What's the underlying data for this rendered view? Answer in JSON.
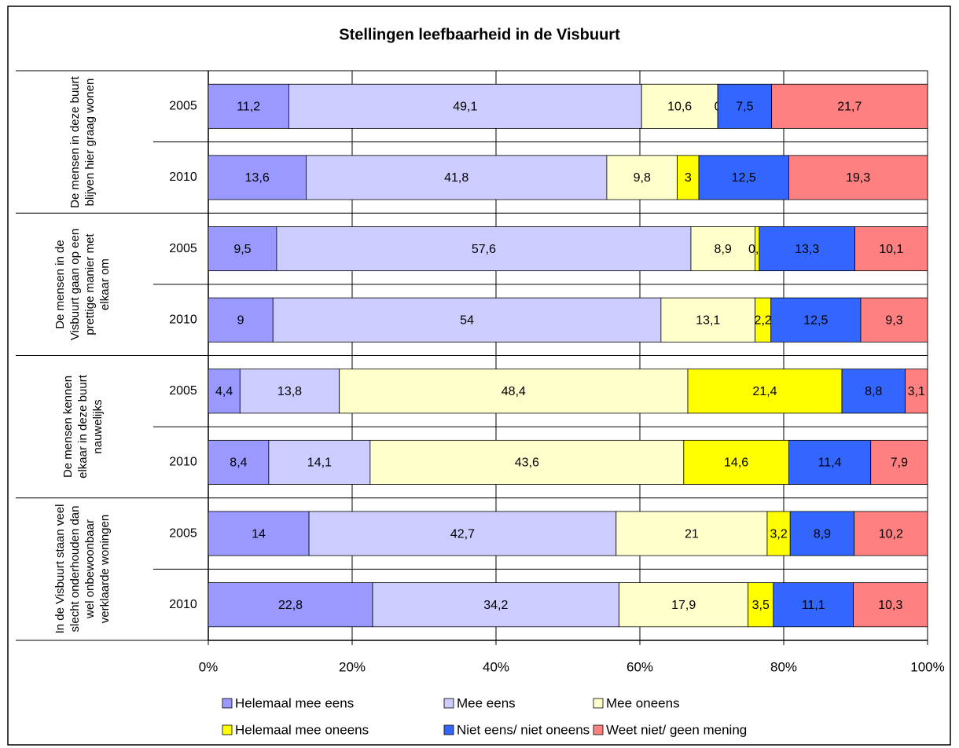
{
  "chart_data": {
    "type": "bar",
    "orientation": "horizontal",
    "stacked": "percent",
    "title": "Stellingen leefbaarheid in de Visbuurt",
    "groups": [
      "De mensen in deze buurt blijven hier graag wonen",
      "De mensen in de Visbuurt gaan op een prettige manier met elkaar om",
      "De mensen kennen elkaar in deze buurt nauwelijks",
      "In de Visbuurt staan veel slecht onderhouden dan wel onbewoonbaar verklaarde woningen"
    ],
    "categories": [
      "2005",
      "2010",
      "2005",
      "2010",
      "2005",
      "2010",
      "2005",
      "2010"
    ],
    "series": [
      {
        "name": "Helemaal mee eens",
        "color": "#9999ff",
        "values": [
          11.2,
          13.6,
          9.5,
          9,
          4.4,
          8.4,
          14,
          22.8
        ],
        "value_labels": [
          "11,2",
          "13,6",
          "9,5",
          "9",
          "4,4",
          "8,4",
          "14",
          "22,8"
        ]
      },
      {
        "name": "Mee eens",
        "color": "#ccccff",
        "values": [
          49.1,
          41.8,
          57.6,
          54,
          13.8,
          14.1,
          42.7,
          34.2
        ],
        "value_labels": [
          "49,1",
          "41,8",
          "57,6",
          "54",
          "13,8",
          "14,1",
          "42,7",
          "34,2"
        ]
      },
      {
        "name": "Mee oneens",
        "color": "#ffffcc",
        "values": [
          10.6,
          9.8,
          8.9,
          13.1,
          48.4,
          43.6,
          21,
          17.9
        ],
        "value_labels": [
          "10,6",
          "9,8",
          "8,9",
          "13,1",
          "48,4",
          "43,6",
          "21",
          "17,9"
        ]
      },
      {
        "name": "Helemaal mee oneens",
        "color": "#ffff00",
        "values": [
          0,
          3,
          0.6,
          2.2,
          21.4,
          14.6,
          3.2,
          3.5
        ],
        "value_labels": [
          "0",
          "3",
          "0,6",
          "2,2",
          "21,4",
          "14,6",
          "3,2",
          "3,5"
        ]
      },
      {
        "name": "Niet eens/ niet oneens",
        "color": "#3366ff",
        "values": [
          7.5,
          12.5,
          13.3,
          12.5,
          8.8,
          11.4,
          8.9,
          11.1
        ],
        "value_labels": [
          "7,5",
          "12,5",
          "13,3",
          "12,5",
          "8,8",
          "11,4",
          "8,9",
          "11,1"
        ]
      },
      {
        "name": "Weet niet/ geen mening",
        "color": "#ff8080",
        "values": [
          21.7,
          19.3,
          10.1,
          9.3,
          3.1,
          7.9,
          10.2,
          10.3
        ],
        "value_labels": [
          "21,7",
          "19,3",
          "10,1",
          "9,3",
          "3,1",
          "7,9",
          "10,2",
          "10,3"
        ]
      }
    ],
    "xlim": [
      0,
      100
    ],
    "xticks": [
      {
        "value": 0,
        "label": "0%"
      },
      {
        "value": 20,
        "label": "20%"
      },
      {
        "value": 40,
        "label": "40%"
      },
      {
        "value": 60,
        "label": "60%"
      },
      {
        "value": 80,
        "label": "80%"
      },
      {
        "value": 100,
        "label": "100%"
      }
    ],
    "grid": true,
    "legend": "bottom"
  }
}
